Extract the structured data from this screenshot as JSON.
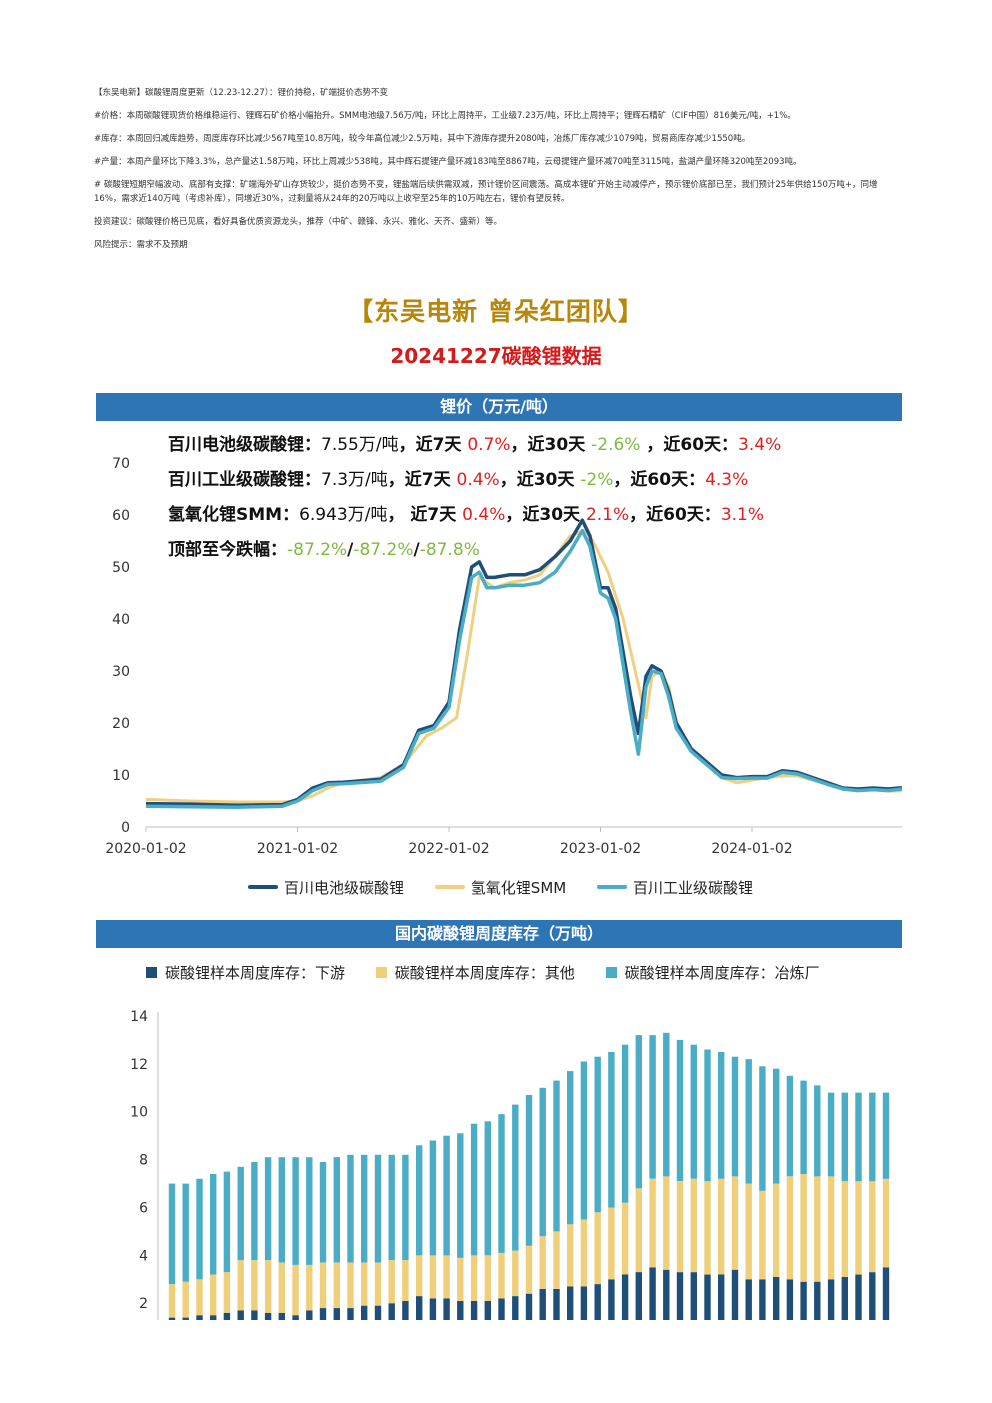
{
  "notes": [
    "【东吴电新】碳酸锂周度更新（12.23-12.27）：锂价持稳，矿端挺价态势不变",
    "#价格：本周碳酸锂现货价格维稳运行、锂辉石矿价格小幅抬升。SMM电池级7.56万/吨，环比上周持平，工业级7.23万/吨，环比上周持平；锂辉石精矿（CIF中国）816美元/吨，+1%。",
    "#库存：本周回归减库趋势，周度库存环比减少567吨至10.8万吨，较今年高位减少2.5万吨，其中下游库存提升2080吨，冶炼厂库存减少1079吨，贸易商库存减少1550吨。",
    "#产量：本周产量环比下降3.3%，总产量达1.58万吨，环比上周减少538吨，其中辉石提锂产量环减183吨至8867吨，云母提锂产量环减70吨至3115吨，盐湖产量环降320吨至2093吨。",
    "# 碳酸锂短期窄幅波动、底部有支撑：矿端海外矿山存货较少，挺价态势不变，锂盐端后续供需双减，预计锂价区间震荡。高成本锂矿开始主动减停产，预示锂价底部已至，我们预计25年供给150万吨+，同增16%，需求近140万吨（考虑补库），同增近30%，过剩量将从24年的20万吨以上收窄至25年的10万吨左右，锂价有望反转。",
    "投资建议：碳酸锂价格已见底，看好具备优质资源龙头，推荐（中矿、赣锋、永兴、雅化、天齐、盛新）等。",
    "风险提示：需求不及预期"
  ],
  "brand": "【东吴电新 曾朵红团队】",
  "subtitle": "20241227碳酸锂数据",
  "banner1": "锂价（万元/吨）",
  "banner2": "国内碳酸锂周度库存（万吨）",
  "stats": {
    "row1": {
      "label": "百川电池级碳酸锂：",
      "price": "7.55万/吨",
      "d7_label": "，近7天 ",
      "d7": "0.7%",
      "d30_label": "，近30天 ",
      "d30": "-2.6%",
      "d60_label": " ，近60天：",
      "d60": "3.4%"
    },
    "row2": {
      "label": "百川工业级碳酸锂：",
      "price": "7.3万/吨",
      "d7_label": "，近7天 ",
      "d7": "0.4%",
      "d30_label": "，近30天 ",
      "d30": "-2%",
      "d60_label": "，近60天：",
      "d60": "4.3%"
    },
    "row3": {
      "label": "氢氧化锂SMM：",
      "price": "6.943万/吨",
      "d7_label": "， 近7天 ",
      "d7": "0.4%",
      "d30_label": "，近30天 ",
      "d30": "2.1%",
      "d60_label": "，近60天：",
      "d60": "3.1%"
    },
    "row4": {
      "label": "顶部至今跌幅：",
      "v1": "-87.2%",
      "sep1": "/",
      "v2": "-87.2%",
      "sep2": "/",
      "v3": "-87.8%"
    }
  },
  "colors": {
    "battery": "#1f4e79",
    "hydroxide": "#f0d080",
    "industrial": "#4bacc6",
    "downstream": "#1f4e79",
    "other": "#f0cf7a",
    "smelter": "#4bacc6"
  },
  "chart_data": [
    {
      "type": "line",
      "ylim": [
        0,
        70
      ],
      "yticks": [
        0,
        10,
        20,
        30,
        40,
        50,
        60,
        70
      ],
      "xticks": [
        "2020-01-02",
        "2021-01-02",
        "2022-01-02",
        "2023-01-02",
        "2024-01-02"
      ],
      "xlim": [
        2020.0,
        2024.99
      ],
      "grid": false,
      "legend_position": "bottom",
      "series": [
        {
          "name": "百川电池级碳酸锂",
          "color_key": "battery",
          "x": [
            2020.0,
            2020.3,
            2020.6,
            2020.9,
            2021.0,
            2021.1,
            2021.2,
            2021.3,
            2021.55,
            2021.7,
            2021.8,
            2021.9,
            2022.0,
            2022.07,
            2022.15,
            2022.2,
            2022.25,
            2022.3,
            2022.4,
            2022.5,
            2022.6,
            2022.7,
            2022.8,
            2022.88,
            2022.93,
            2023.0,
            2023.05,
            2023.1,
            2023.2,
            2023.25,
            2023.3,
            2023.34,
            2023.4,
            2023.45,
            2023.5,
            2023.6,
            2023.7,
            2023.8,
            2023.9,
            2024.0,
            2024.1,
            2024.2,
            2024.3,
            2024.4,
            2024.5,
            2024.6,
            2024.7,
            2024.8,
            2024.9,
            2024.99
          ],
          "y": [
            4.5,
            4.4,
            4.2,
            4.3,
            5.3,
            7.5,
            8.5,
            8.6,
            9.2,
            12.0,
            18.6,
            19.5,
            24.0,
            38.0,
            50.0,
            51.0,
            48.0,
            48.0,
            48.5,
            48.5,
            49.5,
            52.0,
            55.0,
            59.0,
            56.0,
            46.0,
            46.0,
            42.0,
            25.0,
            18.0,
            29.0,
            31.0,
            30.0,
            26.0,
            20.0,
            15.0,
            12.5,
            10.0,
            9.5,
            9.7,
            9.7,
            10.8,
            10.5,
            9.5,
            8.5,
            7.5,
            7.3,
            7.5,
            7.3,
            7.55
          ]
        },
        {
          "name": "氢氧化锂SMM",
          "color_key": "hydroxide",
          "x": [
            2020.0,
            2020.3,
            2020.6,
            2020.9,
            2021.0,
            2021.1,
            2021.2,
            2021.3,
            2021.55,
            2021.7,
            2021.85,
            2021.95,
            2022.05,
            2022.12,
            2022.2,
            2022.3,
            2022.4,
            2022.5,
            2022.6,
            2022.7,
            2022.8,
            2022.9,
            2022.95,
            2023.05,
            2023.15,
            2023.3,
            2023.34,
            2023.4,
            2023.45,
            2023.5,
            2023.6,
            2023.7,
            2023.8,
            2023.9,
            2024.0,
            2024.1,
            2024.2,
            2024.3,
            2024.4,
            2024.5,
            2024.6,
            2024.7,
            2024.8,
            2024.9,
            2024.99
          ],
          "y": [
            5.3,
            5.0,
            4.8,
            4.8,
            5.0,
            6.0,
            7.5,
            8.5,
            9.5,
            12.0,
            17.5,
            19.0,
            21.0,
            33.0,
            48.0,
            46.0,
            47.0,
            47.5,
            48.5,
            52.0,
            56.0,
            57.0,
            55.0,
            49.0,
            40.0,
            21.0,
            29.0,
            30.0,
            27.0,
            20.0,
            15.0,
            12.0,
            9.5,
            8.5,
            9.0,
            9.5,
            9.8,
            9.8,
            9.0,
            8.2,
            7.3,
            7.0,
            7.2,
            6.9,
            6.943
          ]
        },
        {
          "name": "百川工业级碳酸锂",
          "color_key": "industrial",
          "x": [
            2020.0,
            2020.3,
            2020.6,
            2020.9,
            2021.0,
            2021.1,
            2021.2,
            2021.3,
            2021.55,
            2021.7,
            2021.8,
            2021.9,
            2022.0,
            2022.07,
            2022.15,
            2022.2,
            2022.25,
            2022.3,
            2022.4,
            2022.5,
            2022.6,
            2022.7,
            2022.8,
            2022.88,
            2022.93,
            2023.0,
            2023.05,
            2023.1,
            2023.2,
            2023.25,
            2023.3,
            2023.34,
            2023.4,
            2023.45,
            2023.5,
            2023.6,
            2023.7,
            2023.8,
            2023.9,
            2024.0,
            2024.1,
            2024.2,
            2024.3,
            2024.4,
            2024.5,
            2024.6,
            2024.7,
            2024.8,
            2024.9,
            2024.99
          ],
          "y": [
            4.0,
            3.9,
            3.8,
            4.0,
            5.0,
            7.0,
            8.2,
            8.3,
            8.8,
            11.5,
            18.0,
            19.0,
            23.0,
            36.0,
            48.0,
            49.0,
            46.0,
            46.0,
            46.5,
            46.5,
            47.0,
            49.0,
            53.0,
            57.0,
            54.0,
            45.0,
            44.0,
            40.0,
            22.0,
            14.0,
            27.0,
            30.0,
            29.5,
            25.0,
            19.0,
            14.5,
            12.0,
            9.5,
            9.3,
            9.4,
            9.4,
            10.5,
            10.2,
            9.2,
            8.2,
            7.3,
            7.0,
            7.2,
            7.0,
            7.3
          ]
        }
      ]
    },
    {
      "type": "bar",
      "stacked": true,
      "ylim": [
        0,
        14
      ],
      "yticks": [
        2,
        4,
        6,
        8,
        10,
        12,
        14
      ],
      "grid": false,
      "legend_position": "top",
      "series": [
        {
          "name": "碳酸锂样本周度库存：下游",
          "color_key": "downstream",
          "values": [
            1.4,
            1.4,
            1.5,
            1.5,
            1.6,
            1.7,
            1.7,
            1.6,
            1.6,
            1.5,
            1.7,
            1.8,
            1.8,
            1.8,
            1.9,
            1.9,
            2.0,
            2.1,
            2.3,
            2.2,
            2.2,
            2.1,
            2.1,
            2.1,
            2.2,
            2.3,
            2.4,
            2.6,
            2.6,
            2.7,
            2.7,
            2.8,
            3.0,
            3.2,
            3.3,
            3.5,
            3.4,
            3.3,
            3.3,
            3.2,
            3.2,
            3.4,
            3.0,
            3.0,
            3.1,
            3.0,
            2.9,
            2.9,
            3.0,
            3.1,
            3.2,
            3.3,
            3.5
          ]
        },
        {
          "name": "碳酸锂样本周度库存：其他",
          "color_key": "other",
          "values": [
            1.4,
            1.5,
            1.5,
            1.7,
            1.7,
            2.1,
            2.1,
            2.2,
            2.1,
            2.1,
            1.9,
            1.9,
            1.9,
            1.9,
            1.8,
            1.8,
            1.8,
            1.7,
            1.7,
            1.8,
            1.8,
            1.8,
            1.9,
            1.9,
            1.9,
            1.9,
            2.0,
            2.2,
            2.4,
            2.6,
            2.8,
            3.0,
            3.0,
            3.0,
            3.5,
            3.7,
            3.9,
            3.8,
            3.9,
            3.9,
            4.0,
            3.9,
            4.0,
            3.7,
            3.9,
            4.3,
            4.5,
            4.4,
            4.3,
            4.0,
            3.9,
            3.8,
            3.7
          ]
        },
        {
          "name": "碳酸锂样本周度库存：冶炼厂",
          "color_key": "smelter",
          "values": [
            4.2,
            4.1,
            4.2,
            4.2,
            4.2,
            3.9,
            4.1,
            4.3,
            4.4,
            4.5,
            4.5,
            4.2,
            4.4,
            4.5,
            4.5,
            4.5,
            4.4,
            4.4,
            4.6,
            4.8,
            5.0,
            5.2,
            5.5,
            5.6,
            5.8,
            6.1,
            6.3,
            6.2,
            6.3,
            6.4,
            6.6,
            6.5,
            6.5,
            6.6,
            6.4,
            6.0,
            6.0,
            5.9,
            5.6,
            5.5,
            5.3,
            5.0,
            5.2,
            5.2,
            4.8,
            4.2,
            3.9,
            3.8,
            3.5,
            3.7,
            3.7,
            3.7,
            3.6
          ]
        }
      ]
    }
  ]
}
